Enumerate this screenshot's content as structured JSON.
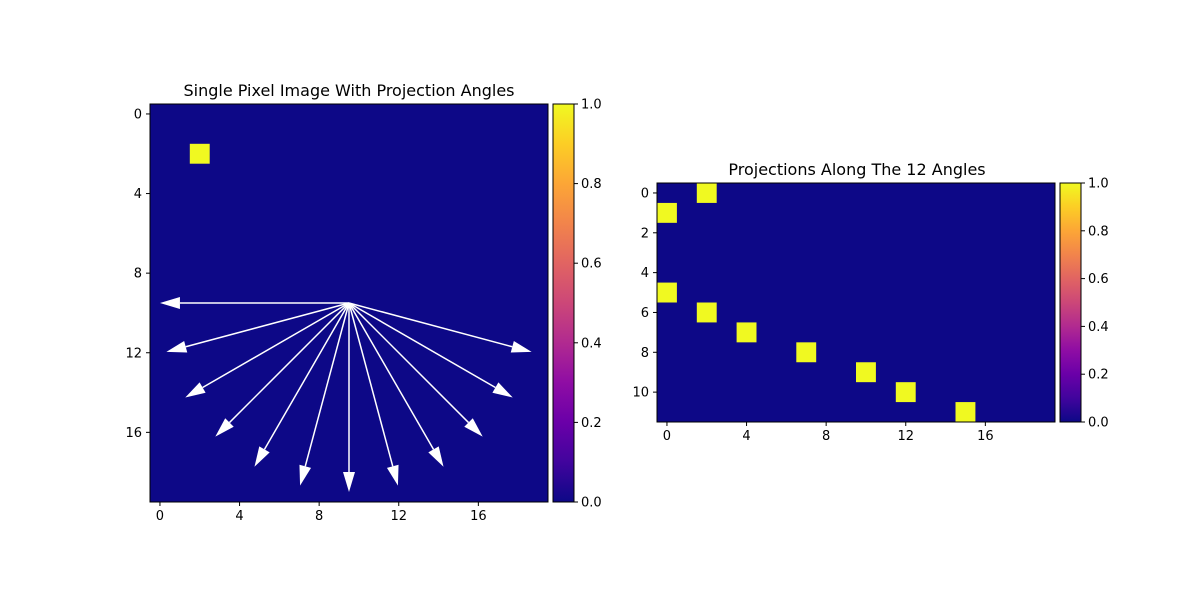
{
  "chart_data": [
    {
      "type": "heatmap",
      "title": "Single Pixel Image With Projection Angles",
      "xlabel": "",
      "ylabel": "",
      "grid": false,
      "shape": [
        20,
        20
      ],
      "xlim": [
        -0.5,
        19.5
      ],
      "ylim": [
        19.5,
        -0.5
      ],
      "xticks": [
        0,
        4,
        8,
        12,
        16
      ],
      "yticks": [
        0,
        4,
        8,
        12,
        16
      ],
      "background_value": 0,
      "nonzero_cells": [
        {
          "row": 2,
          "col": 2,
          "value": 1
        }
      ],
      "arrows": {
        "color": "#ffffff",
        "origin": [
          9.5,
          9.5
        ],
        "count": 12,
        "angles_deg": [
          0,
          15,
          30,
          45,
          60,
          75,
          90,
          105,
          120,
          135,
          150,
          165
        ],
        "length": 9.5
      },
      "colorbar": {
        "colormap": "plasma",
        "min": 0.0,
        "max": 1.0,
        "ticks": [
          "0.0",
          "0.2",
          "0.4",
          "0.6",
          "0.8",
          "1.0"
        ]
      }
    },
    {
      "type": "heatmap",
      "title": "Projections Along The 12 Angles",
      "xlabel": "",
      "ylabel": "",
      "grid": false,
      "shape": [
        12,
        20
      ],
      "xlim": [
        -0.5,
        19.5
      ],
      "ylim": [
        11.5,
        -0.5
      ],
      "xticks": [
        0,
        4,
        8,
        12,
        16
      ],
      "yticks": [
        0,
        2,
        4,
        6,
        8,
        10
      ],
      "background_value": 0,
      "nonzero_cells": [
        {
          "row": 0,
          "col": 2,
          "value": 1
        },
        {
          "row": 1,
          "col": 0,
          "value": 1
        },
        {
          "row": 5,
          "col": 0,
          "value": 1
        },
        {
          "row": 6,
          "col": 2,
          "value": 1
        },
        {
          "row": 7,
          "col": 4,
          "value": 1
        },
        {
          "row": 8,
          "col": 7,
          "value": 1
        },
        {
          "row": 9,
          "col": 10,
          "value": 1
        },
        {
          "row": 10,
          "col": 12,
          "value": 1
        },
        {
          "row": 11,
          "col": 15,
          "value": 1
        }
      ],
      "colorbar": {
        "colormap": "plasma",
        "min": 0.0,
        "max": 1.0,
        "ticks": [
          "0.0",
          "0.2",
          "0.4",
          "0.6",
          "0.8",
          "1.0"
        ]
      }
    }
  ],
  "colors": {
    "low": "#0d0887",
    "high": "#f0f921",
    "frame": "#000000",
    "background": "#ffffff"
  }
}
